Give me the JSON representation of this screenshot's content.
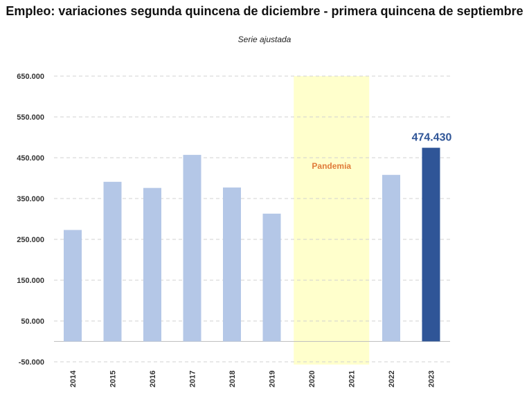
{
  "chart_data": {
    "type": "bar",
    "title": "Empleo: variaciones segunda quincena de diciembre - primera quincena de septiembre",
    "subtitle": "Serie ajustada",
    "categories": [
      "2014",
      "2015",
      "2016",
      "2017",
      "2018",
      "2019",
      "2020",
      "2021",
      "2022",
      "2023"
    ],
    "values": [
      273000,
      391000,
      376000,
      457000,
      377000,
      313000,
      null,
      null,
      408000,
      474430
    ],
    "yticks": [
      "650.000",
      "550.000",
      "450.000",
      "350.000",
      "250.000",
      "150.000",
      "50.000",
      "-50.000"
    ],
    "ytick_values": [
      650000,
      550000,
      450000,
      350000,
      250000,
      150000,
      50000,
      -50000
    ],
    "ylim": [
      -56000,
      650000
    ],
    "grid": true,
    "highlight_index": 9,
    "data_label": "474.430",
    "shaded_region": {
      "from": "2020",
      "to": "2021",
      "label": "Pandemia"
    },
    "colors": {
      "bar": "#b4c7e7",
      "highlight": "#2f5597",
      "shade": "#ffffcc",
      "annotation": "#e07b39",
      "grid": "#d0d0d0"
    }
  }
}
